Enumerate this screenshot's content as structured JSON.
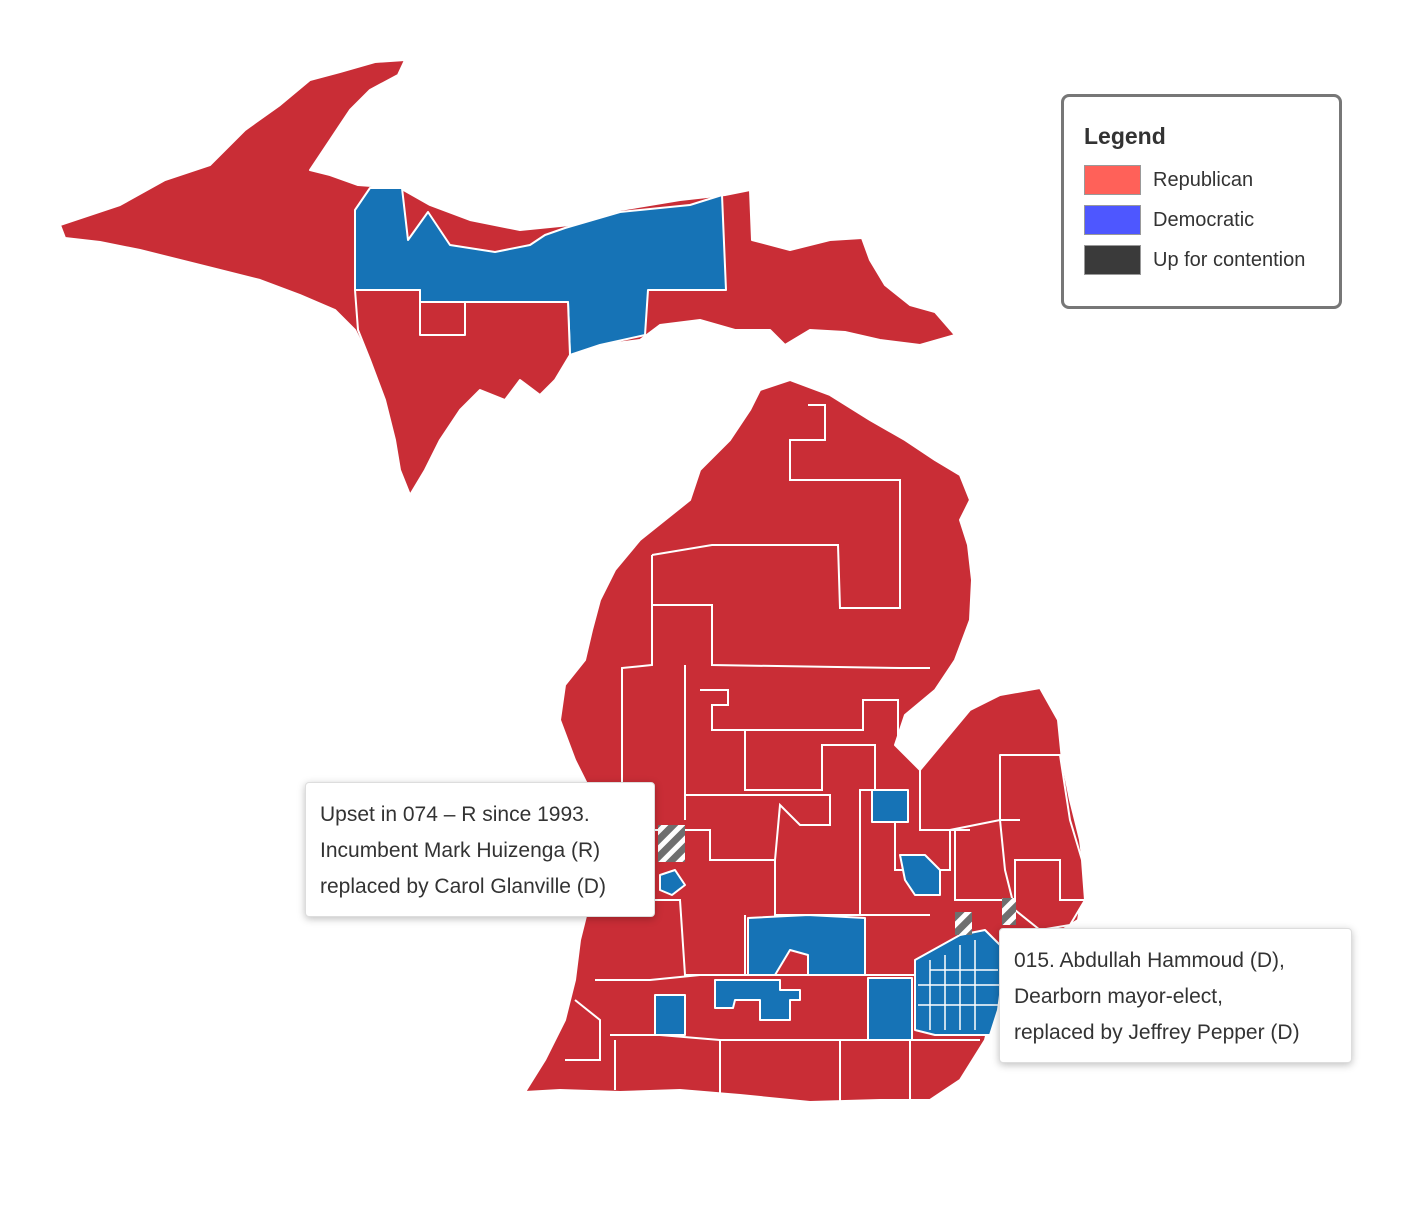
{
  "legend": {
    "title": "Legend",
    "items": [
      {
        "label": "Republican",
        "color": "#ff6159"
      },
      {
        "label": "Democratic",
        "color": "#4e57ff"
      },
      {
        "label": "Up for contention",
        "color": "#3a3a3a"
      }
    ]
  },
  "map_colors": {
    "republican": "#c92d36",
    "democratic": "#1673b6",
    "contention": "#6f6f6f"
  },
  "callouts": [
    {
      "lines": [
        "Upset in 074 – R since 1993.",
        "Incumbent Mark Huizenga (R)",
        "replaced by Carol Glanville (D)"
      ]
    },
    {
      "lines": [
        "015. Abdullah Hammoud (D),",
        "Dearborn mayor-elect,",
        "replaced by Jeffrey Pepper (D)"
      ]
    }
  ]
}
